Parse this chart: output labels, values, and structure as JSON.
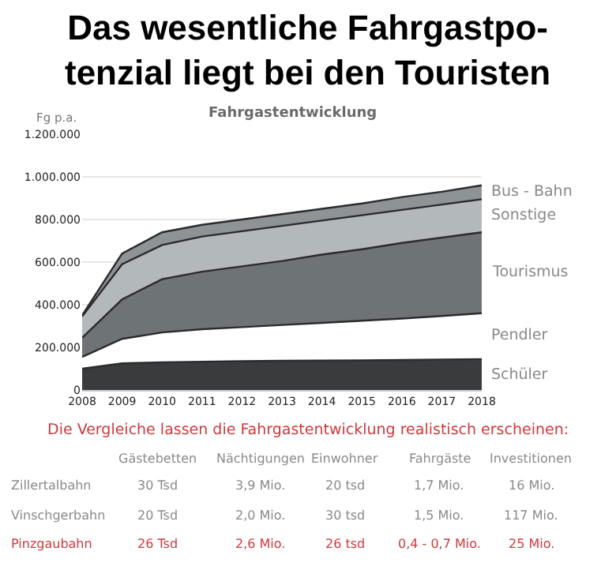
{
  "chart_data": {
    "type": "area",
    "stacked": true,
    "title": "Das wesentliche Fahrgastpo-\ntenzial liegt bei den Touristen",
    "subtitle": "Fahrgastentwicklung",
    "ylabel": "Fg p.a.",
    "x": [
      2008,
      2009,
      2010,
      2011,
      2012,
      2013,
      2014,
      2015,
      2016,
      2017,
      2018
    ],
    "xlim": [
      2008,
      2018
    ],
    "xticks": [
      2008,
      2009,
      2010,
      2011,
      2012,
      2013,
      2014,
      2015,
      2016,
      2017,
      2018
    ],
    "ylim": [
      0,
      1200000
    ],
    "yticks": [
      0,
      {
        "value": 200000,
        "label": "200.000"
      },
      {
        "value": 400000,
        "label": "400.000"
      },
      {
        "value": 600000,
        "label": "600.000"
      },
      {
        "value": 800000,
        "label": "800.000"
      },
      {
        "value": 1000000,
        "label": "1.000.000"
      },
      {
        "value": 1200000,
        "label": "1.200.000"
      }
    ],
    "grid": "y",
    "legend": false,
    "series": [
      {
        "name": "Schüler",
        "color": "#3a3b3d",
        "values": [
          100000,
          125000,
          130000,
          133000,
          135000,
          137000,
          138000,
          139000,
          141000,
          143000,
          145000
        ]
      },
      {
        "name": "Pendler",
        "color": "#ffffff",
        "values": [
          55000,
          115000,
          140000,
          152000,
          160000,
          168000,
          177000,
          186000,
          194000,
          204000,
          215000
        ]
      },
      {
        "name": "Tourismus",
        "color": "#6e7475",
        "values": [
          90000,
          185000,
          250000,
          270000,
          285000,
          300000,
          320000,
          335000,
          355000,
          368000,
          380000
        ]
      },
      {
        "name": "Sonstige",
        "color": "#b3b9bb",
        "values": [
          100000,
          165000,
          160000,
          165000,
          165000,
          165000,
          160000,
          160000,
          155000,
          155000,
          155000
        ]
      },
      {
        "name": "Bus - Bahn",
        "color": "#8e9395",
        "values": [
          5000,
          50000,
          60000,
          55000,
          55000,
          55000,
          55000,
          55000,
          60000,
          60000,
          65000
        ]
      }
    ],
    "annotations": [
      "Die Vergleiche lassen die Fahrgastentwicklung realistisch erscheinen:",
      "Gästebetten",
      "Nächtigungen",
      "Einwohner",
      "Fahrgäste",
      "Investitionen",
      "Zillertalbahn",
      "30 Tsd",
      "3,9 Mio.",
      "20 tsd",
      "1,7 Mio.",
      "16 Mio.",
      "Vinschgerbahn",
      "20 Tsd",
      "2,0 Mio.",
      "30 tsd",
      "1,5 Mio.",
      "117 Mio.",
      "Pinzgaubahn",
      "26 Tsd",
      "2,6 Mio.",
      "26 tsd",
      "0,4 - 0,7 Mio.",
      "25 Mio."
    ]
  }
}
